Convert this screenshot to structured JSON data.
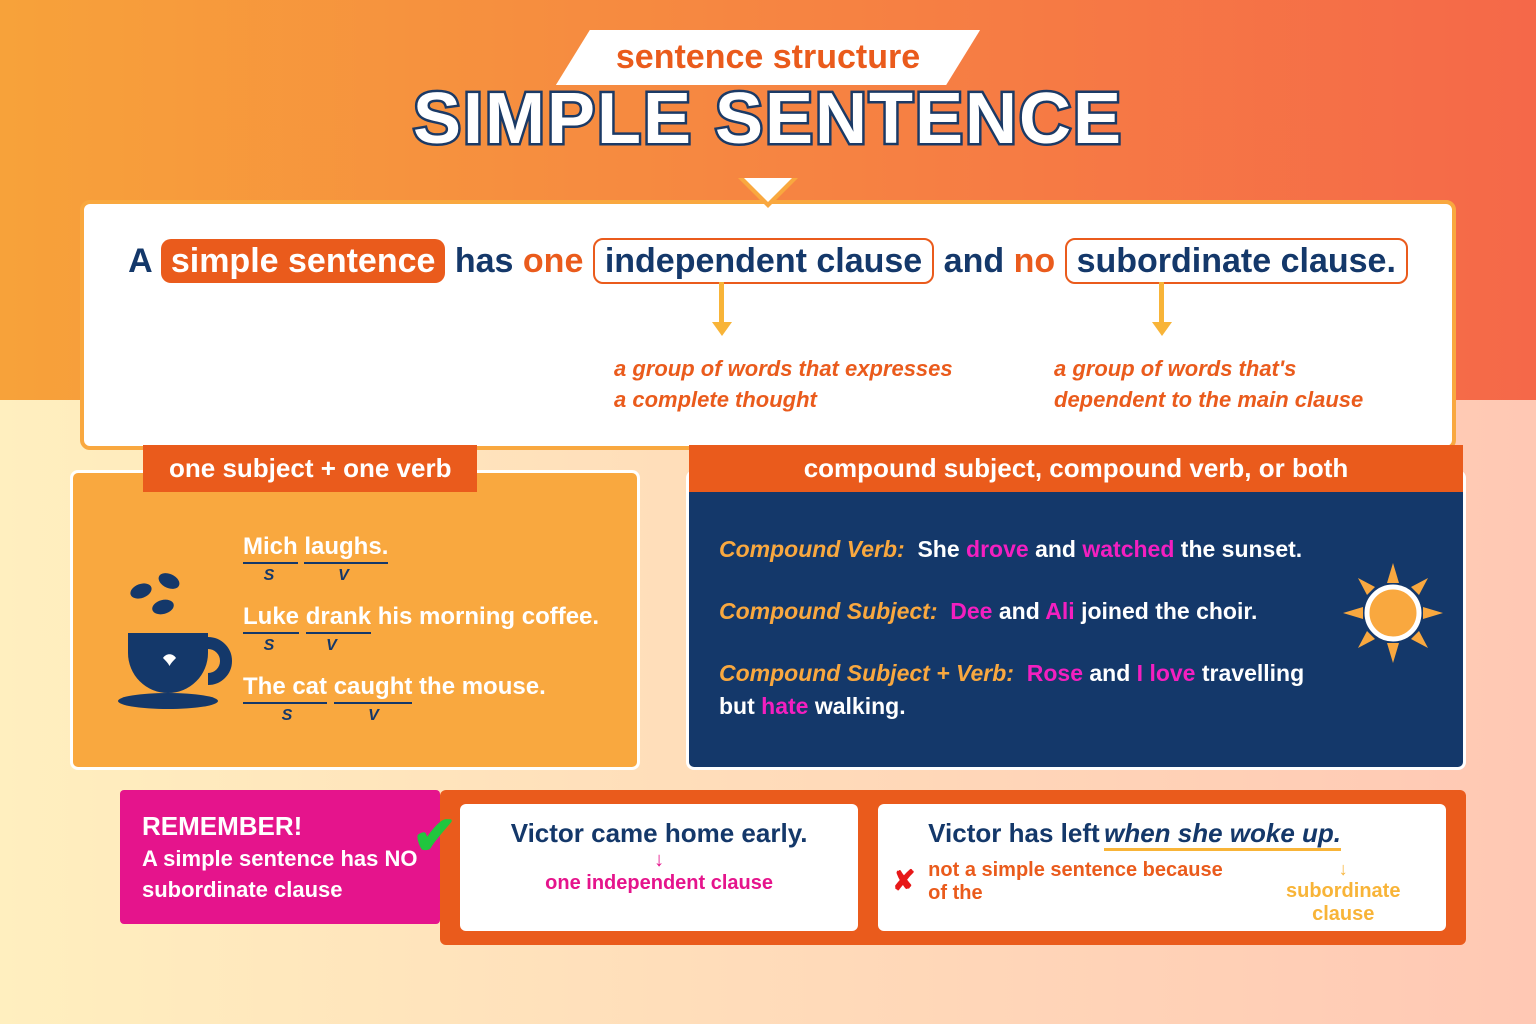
{
  "colors": {
    "orange_deep": "#ea5b1c",
    "orange_mid": "#f7a23a",
    "navy": "#14386a",
    "yellow_panel": "#f9a83f",
    "amber_arrow": "#f8b438",
    "magenta": "#e5148c",
    "pink": "#f31fc0",
    "green": "#21c63e",
    "red": "#e71818",
    "white": "#ffffff"
  },
  "fontsizes": {
    "banner": 34,
    "title": 72,
    "definition": 34,
    "callout": 22,
    "tab": 26,
    "example": 24,
    "sv": 16,
    "remember_title": 26,
    "remember_body": 22,
    "card_title": 26,
    "card_sub": 20,
    "compound": 23
  },
  "banner": "sentence structure",
  "title": "SIMPLE SENTENCE",
  "definition": {
    "prefix": "A",
    "highlight1": "simple sentence",
    "mid1": "has",
    "accent1": "one",
    "highlight2": "independent clause",
    "mid2": "and",
    "accent2": "no",
    "highlight3": "subordinate clause."
  },
  "callouts": {
    "independent": "a group of words that expresses\na complete thought",
    "subordinate": "a group of words that's\ndependent to the main clause"
  },
  "left_panel": {
    "tab": "one subject + one verb",
    "examples": [
      {
        "subject": "Mich",
        "verb": "laughs.",
        "rest": ""
      },
      {
        "subject": "Luke",
        "verb": "drank",
        "rest": "his morning coffee."
      },
      {
        "subject": "The cat",
        "verb": "caught",
        "rest": "the mouse."
      }
    ],
    "s_label": "S",
    "v_label": "V"
  },
  "right_panel": {
    "tab": "compound subject, compound verb, or both",
    "line1": {
      "label": "Compound Verb:",
      "p1": "She",
      "h1": "drove",
      "p2": "and",
      "h2": "watched",
      "p3": "the sunset."
    },
    "line2": {
      "label": "Compound Subject:",
      "h1": "Dee",
      "p1": "and",
      "h2": "Ali",
      "p2": "joined the choir."
    },
    "line3": {
      "label": "Compound Subject + Verb:",
      "h1": "Rose",
      "p1": "and",
      "h2": "I",
      "v1": "love",
      "p2": "travelling but",
      "v2": "hate",
      "p3": "walking."
    }
  },
  "remember": {
    "title": "REMEMBER!",
    "body": "A simple sentence has NO subordinate clause"
  },
  "bottom": {
    "good": {
      "text": "Victor came home early.",
      "sub": "one independent clause"
    },
    "bad": {
      "p1": "Victor has left",
      "p2": "when she woke up.",
      "sub1": "not a simple sentence because of the",
      "sub2": "subordinate clause"
    }
  }
}
